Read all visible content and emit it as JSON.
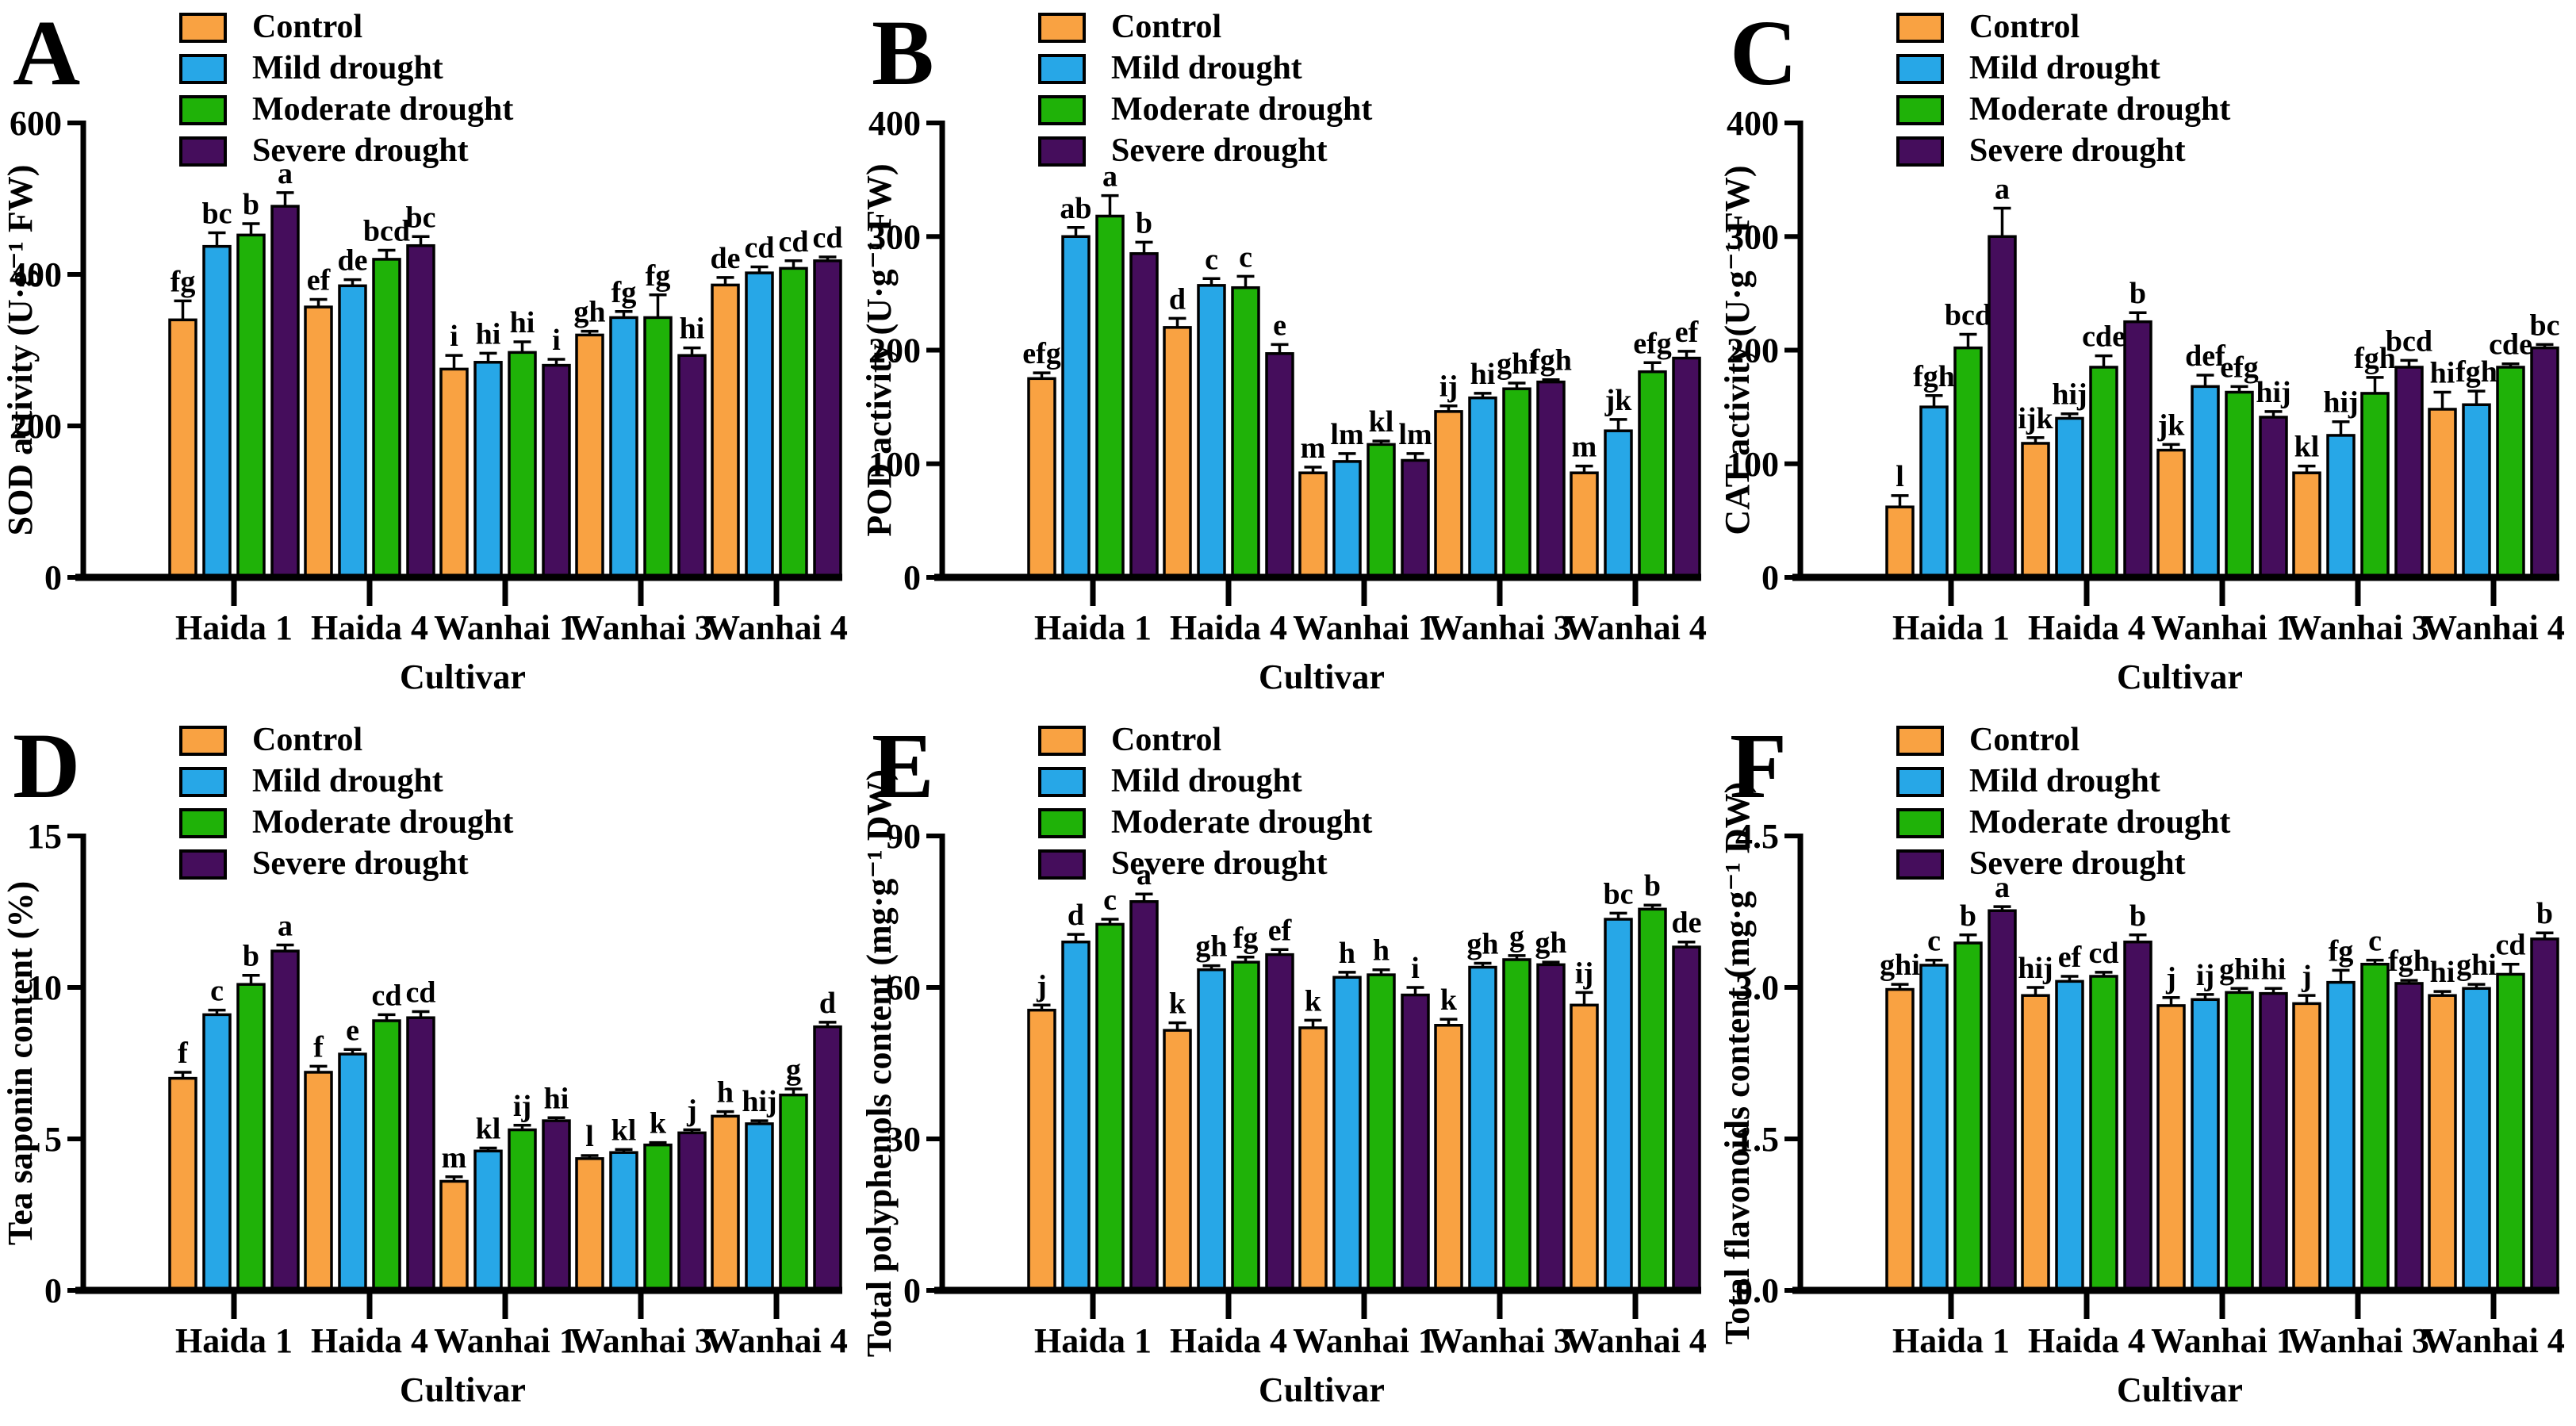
{
  "figure_title": "",
  "legend": {
    "position": "top-left-inside",
    "items": [
      {
        "label": "Control",
        "color": "#F9A242"
      },
      {
        "label": "Mild drought",
        "color": "#27A7E7"
      },
      {
        "label": "Moderate drought",
        "color": "#1FB208"
      },
      {
        "label": "Severe drought",
        "color": "#450D5C"
      }
    ]
  },
  "colors": {
    "bar_outline": "#000000",
    "axis": "#000000",
    "text": "#000000",
    "background": "#FFFFFF"
  },
  "chart_data": [
    {
      "panel": "A",
      "type": "bar",
      "ylabel": "SOD activity (U·g⁻¹ FW)",
      "xlabel": "Cultivar",
      "ylim": [
        0,
        600
      ],
      "yticks": [
        0,
        200,
        400,
        600
      ],
      "ytick_labels": [
        "0",
        "200",
        "400",
        "600"
      ],
      "grid": false,
      "categories": [
        "Haida 1",
        "Haida 4",
        "Wanhai 1",
        "Wanhai 3",
        "Wanhai 4"
      ],
      "series": [
        {
          "name": "Control",
          "values": [
            340,
            357,
            275,
            320,
            386
          ],
          "errors": [
            25,
            10,
            18,
            5,
            10
          ],
          "letters": [
            "fg",
            "ef",
            "i",
            "gh",
            "de"
          ]
        },
        {
          "name": "Mild drought",
          "values": [
            437,
            385,
            284,
            343,
            402
          ],
          "errors": [
            18,
            8,
            12,
            8,
            8
          ],
          "letters": [
            "bc",
            "de",
            "hi",
            "fg",
            "cd"
          ]
        },
        {
          "name": "Moderate drought",
          "values": [
            452,
            420,
            297,
            343,
            408
          ],
          "errors": [
            15,
            12,
            14,
            30,
            10
          ],
          "letters": [
            "b",
            "bcd",
            "hi",
            "fg",
            "cd"
          ]
        },
        {
          "name": "Severe drought",
          "values": [
            490,
            438,
            280,
            293,
            418
          ],
          "errors": [
            18,
            12,
            8,
            10,
            5
          ],
          "letters": [
            "a",
            "bc",
            "i",
            "hi",
            "cd"
          ]
        }
      ]
    },
    {
      "panel": "B",
      "type": "bar",
      "ylabel": "POD activity (U·g⁻¹ FW)",
      "xlabel": "Cultivar",
      "ylim": [
        0,
        400
      ],
      "yticks": [
        0,
        100,
        200,
        300,
        400
      ],
      "ytick_labels": [
        "0",
        "100",
        "200",
        "300",
        "400"
      ],
      "grid": false,
      "categories": [
        "Haida 1",
        "Haida 4",
        "Wanhai 1",
        "Wanhai 3",
        "Wanhai 4"
      ],
      "series": [
        {
          "name": "Control",
          "values": [
            175,
            220,
            92,
            146,
            92
          ],
          "errors": [
            5,
            8,
            5,
            5,
            6
          ],
          "letters": [
            "efg",
            "d",
            "m",
            "ij",
            "m"
          ]
        },
        {
          "name": "Mild drought",
          "values": [
            300,
            257,
            102,
            158,
            129
          ],
          "errors": [
            8,
            6,
            7,
            4,
            10
          ],
          "letters": [
            "ab",
            "c",
            "lm",
            "hi",
            "jk"
          ]
        },
        {
          "name": "Moderate drought",
          "values": [
            318,
            255,
            117,
            166,
            181
          ],
          "errors": [
            18,
            10,
            3,
            5,
            8
          ],
          "letters": [
            "a",
            "c",
            "kl",
            "ghi",
            "efg"
          ]
        },
        {
          "name": "Severe drought",
          "values": [
            285,
            197,
            103,
            172,
            193
          ],
          "errors": [
            10,
            8,
            6,
            2,
            6
          ],
          "letters": [
            "b",
            "e",
            "lm",
            "fgh",
            "ef"
          ]
        }
      ]
    },
    {
      "panel": "C",
      "type": "bar",
      "ylabel": "CAT activity (U·g⁻¹ FW)",
      "xlabel": "Cultivar",
      "ylim": [
        0,
        400
      ],
      "yticks": [
        0,
        100,
        200,
        300,
        400
      ],
      "ytick_labels": [
        "0",
        "100",
        "200",
        "300",
        "400"
      ],
      "grid": false,
      "categories": [
        "Haida 1",
        "Haida 4",
        "Wanhai 1",
        "Wanhai 3",
        "Wanhai 4"
      ],
      "series": [
        {
          "name": "Control",
          "values": [
            62,
            118,
            112,
            92,
            148
          ],
          "errors": [
            10,
            5,
            5,
            6,
            15
          ],
          "letters": [
            "l",
            "ijk",
            "jk",
            "kl",
            "hi"
          ]
        },
        {
          "name": "Mild drought",
          "values": [
            150,
            140,
            168,
            125,
            152
          ],
          "errors": [
            10,
            4,
            10,
            12,
            12
          ],
          "letters": [
            "fgh",
            "hij",
            "def",
            "hij",
            "fgh"
          ]
        },
        {
          "name": "Moderate drought",
          "values": [
            202,
            185,
            163,
            162,
            185
          ],
          "errors": [
            12,
            10,
            5,
            14,
            3
          ],
          "letters": [
            "bcd",
            "cde",
            "efg",
            "fgh",
            "cde"
          ]
        },
        {
          "name": "Severe drought",
          "values": [
            300,
            225,
            141,
            185,
            202
          ],
          "errors": [
            25,
            8,
            5,
            6,
            3
          ],
          "letters": [
            "a",
            "b",
            "hij",
            "bcd",
            "bc"
          ]
        }
      ]
    },
    {
      "panel": "D",
      "type": "bar",
      "ylabel": "Tea saponin content (%)",
      "xlabel": "Cultivar",
      "ylim": [
        0,
        15
      ],
      "yticks": [
        0,
        5,
        10,
        15
      ],
      "ytick_labels": [
        "0",
        "5",
        "10",
        "15"
      ],
      "grid": false,
      "categories": [
        "Haida 1",
        "Haida 4",
        "Wanhai 1",
        "Wanhai 3",
        "Wanhai 4"
      ],
      "series": [
        {
          "name": "Control",
          "values": [
            7.0,
            7.2,
            3.6,
            4.35,
            5.75
          ],
          "errors": [
            0.2,
            0.2,
            0.15,
            0.1,
            0.15
          ],
          "letters": [
            "f",
            "f",
            "m",
            "l",
            "h"
          ]
        },
        {
          "name": "Mild drought",
          "values": [
            9.1,
            7.8,
            4.6,
            4.55,
            5.5
          ],
          "errors": [
            0.15,
            0.15,
            0.1,
            0.1,
            0.1
          ],
          "letters": [
            "c",
            "e",
            "kl",
            "kl",
            "hij"
          ]
        },
        {
          "name": "Moderate drought",
          "values": [
            10.1,
            8.9,
            5.3,
            4.8,
            6.45
          ],
          "errors": [
            0.3,
            0.2,
            0.15,
            0.08,
            0.2
          ],
          "letters": [
            "b",
            "cd",
            "ij",
            "k",
            "g"
          ]
        },
        {
          "name": "Severe drought",
          "values": [
            11.2,
            9.0,
            5.6,
            5.2,
            8.7
          ],
          "errors": [
            0.2,
            0.2,
            0.1,
            0.1,
            0.15
          ],
          "letters": [
            "a",
            "cd",
            "hi",
            "j",
            "d"
          ]
        }
      ]
    },
    {
      "panel": "E",
      "type": "bar",
      "ylabel": "Total polyphenols content (mg·g⁻¹ DW)",
      "xlabel": "Cultivar",
      "ylim": [
        0,
        90
      ],
      "yticks": [
        0,
        30,
        60,
        90
      ],
      "ytick_labels": [
        "0",
        "30",
        "60",
        "90"
      ],
      "grid": false,
      "categories": [
        "Haida 1",
        "Haida 4",
        "Wanhai 1",
        "Wanhai 3",
        "Wanhai 4"
      ],
      "series": [
        {
          "name": "Control",
          "values": [
            55.5,
            51.5,
            52,
            52.5,
            56.5
          ],
          "errors": [
            1,
            1.5,
            1.5,
            1.2,
            2.5
          ],
          "letters": [
            "j",
            "k",
            "k",
            "k",
            "ij"
          ]
        },
        {
          "name": "Mild drought",
          "values": [
            69,
            63.5,
            62,
            64,
            73.5
          ],
          "errors": [
            1.5,
            0.8,
            1,
            0.8,
            1.2
          ],
          "letters": [
            "d",
            "gh",
            "h",
            "gh",
            "bc"
          ]
        },
        {
          "name": "Moderate drought",
          "values": [
            72.5,
            65,
            62.5,
            65.5,
            75.5
          ],
          "errors": [
            1,
            1,
            1,
            0.8,
            0.8
          ],
          "letters": [
            "c",
            "fg",
            "h",
            "g",
            "b"
          ]
        },
        {
          "name": "Severe drought",
          "values": [
            77,
            66.5,
            58.5,
            64.5,
            68
          ],
          "errors": [
            1.5,
            1,
            1.5,
            0.5,
            1
          ],
          "letters": [
            "a",
            "ef",
            "i",
            "gh",
            "de"
          ]
        }
      ]
    },
    {
      "panel": "F",
      "type": "bar",
      "ylabel": "Total flavonoids content (mg·g⁻¹ DW)",
      "xlabel": "Cultivar",
      "ylim": [
        0,
        4.5
      ],
      "yticks": [
        0,
        1.5,
        3.0,
        4.5
      ],
      "ytick_labels": [
        "0.0",
        "1.5",
        "3.0",
        "4.5"
      ],
      "grid": false,
      "categories": [
        "Haida 1",
        "Haida 4",
        "Wanhai 1",
        "Wanhai 3",
        "Wanhai 4"
      ],
      "series": [
        {
          "name": "Control",
          "values": [
            2.98,
            2.92,
            2.82,
            2.84,
            2.92
          ],
          "errors": [
            0.05,
            0.08,
            0.08,
            0.08,
            0.04
          ],
          "letters": [
            "ghi",
            "hij",
            "j",
            "j",
            "hi"
          ]
        },
        {
          "name": "Mild drought",
          "values": [
            3.22,
            3.06,
            2.88,
            3.05,
            2.99
          ],
          "errors": [
            0.05,
            0.05,
            0.05,
            0.12,
            0.04
          ],
          "letters": [
            "c",
            "ef",
            "ij",
            "fg",
            "ghi"
          ]
        },
        {
          "name": "Moderate drought",
          "values": [
            3.44,
            3.11,
            2.95,
            3.23,
            3.13
          ],
          "errors": [
            0.08,
            0.04,
            0.04,
            0.04,
            0.1
          ],
          "letters": [
            "b",
            "cd",
            "ghi",
            "c",
            "cd"
          ]
        },
        {
          "name": "Severe drought",
          "values": [
            3.76,
            3.45,
            2.94,
            3.04,
            3.48
          ],
          "errors": [
            0.04,
            0.07,
            0.05,
            0.03,
            0.06
          ],
          "letters": [
            "a",
            "b",
            "hi",
            "fgh",
            "b"
          ]
        }
      ]
    }
  ]
}
